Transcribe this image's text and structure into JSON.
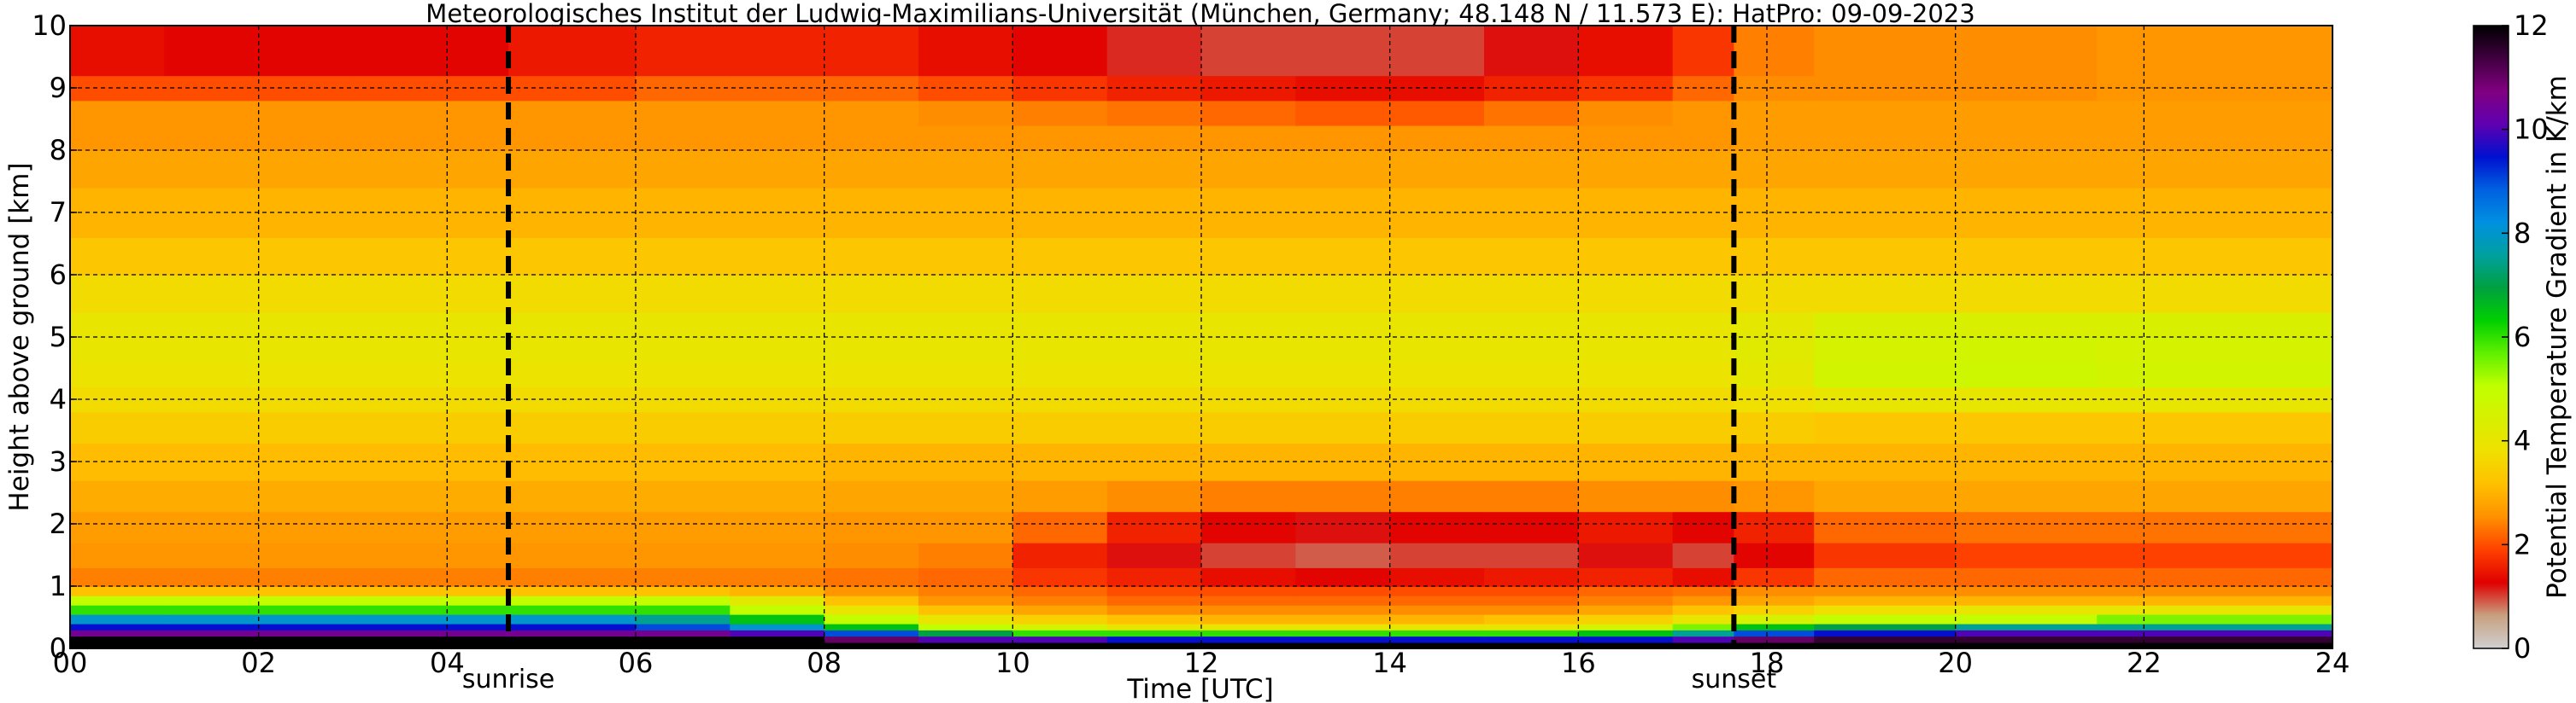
{
  "chart_data": {
    "type": "heatmap",
    "title": "Meteorologisches Institut der Ludwig-Maximilians-Universität (München, Germany; 48.148 N / 11.573 E):    HatPro: 09-09-2023",
    "xlabel": "Time [UTC]",
    "ylabel": "Height above ground [km]",
    "colorbar_label": "Potential Temperature Gradient in K/km",
    "xlim": [
      0,
      24
    ],
    "ylim": [
      0,
      10
    ],
    "clim": [
      0,
      12
    ],
    "x_ticks": [
      0,
      2,
      4,
      6,
      8,
      10,
      12,
      14,
      16,
      18,
      20,
      22,
      24
    ],
    "x_tick_labels": [
      "00",
      "02",
      "04",
      "06",
      "08",
      "10",
      "12",
      "14",
      "16",
      "18",
      "20",
      "22",
      "24"
    ],
    "y_ticks": [
      0,
      1,
      2,
      3,
      4,
      5,
      6,
      7,
      8,
      9,
      10
    ],
    "y_tick_labels": [
      "0",
      "1",
      "2",
      "3",
      "4",
      "5",
      "6",
      "7",
      "8",
      "9",
      "10"
    ],
    "colorbar_ticks": [
      0,
      2,
      4,
      6,
      8,
      10,
      12
    ],
    "colorbar_tick_labels": [
      "0",
      "2",
      "4",
      "6",
      "8",
      "10",
      "12"
    ],
    "grid": true,
    "colormap": [
      "#d0d0d0",
      "#c8a080",
      "#e00000",
      "#ff4000",
      "#ff9000",
      "#ffc000",
      "#f0e000",
      "#d8f000",
      "#c0ff00",
      "#60f000",
      "#00d000",
      "#00a040",
      "#00a0a0",
      "#0090e0",
      "#0060e0",
      "#0010d0",
      "#6000b0",
      "#800080",
      "#400040",
      "#000000"
    ],
    "events": [
      {
        "name": "sunrise",
        "x": 4.65
      },
      {
        "name": "sunset",
        "x": 17.65
      }
    ],
    "time_bins": [
      0,
      1,
      2,
      3,
      4,
      4.65,
      6,
      7,
      8,
      9,
      10,
      11,
      12,
      13,
      14,
      15,
      16,
      17,
      17.65,
      18.5,
      20,
      21.5,
      24
    ],
    "height_bins": [
      0,
      0.1,
      0.2,
      0.3,
      0.4,
      0.55,
      0.7,
      0.85,
      1.0,
      1.3,
      1.7,
      2.2,
      2.7,
      3.3,
      3.8,
      4.2,
      4.6,
      5.0,
      5.4,
      6.0,
      6.6,
      7.4,
      8.0,
      8.4,
      8.8,
      9.2,
      10
    ],
    "values": [
      [
        12.0,
        12.0,
        12.0,
        12.0,
        12.0,
        12.0,
        12.0,
        12.0,
        12.0,
        12.0,
        12.0,
        12.0,
        12.0,
        12.0,
        12.0,
        12.0,
        12.0,
        12.0,
        12.0,
        12.0,
        12.0,
        12.0
      ],
      [
        12.0,
        12.0,
        12.0,
        12.0,
        12.0,
        12.0,
        12.0,
        12.0,
        11.0,
        10.0,
        10.0,
        9.5,
        9.5,
        9.5,
        9.5,
        9.5,
        9.5,
        10.0,
        11.0,
        11.5,
        11.5,
        11.5
      ],
      [
        10.5,
        10.5,
        10.5,
        10.5,
        10.5,
        10.5,
        10.5,
        10.0,
        9.0,
        7.0,
        6.0,
        6.0,
        6.0,
        6.0,
        6.0,
        6.0,
        6.5,
        7.5,
        9.0,
        9.5,
        10.0,
        10.0
      ],
      [
        9.5,
        9.5,
        9.5,
        9.5,
        9.5,
        9.5,
        9.0,
        8.0,
        6.5,
        5.0,
        4.5,
        4.0,
        4.0,
        4.0,
        4.0,
        4.0,
        4.5,
        5.5,
        6.5,
        7.0,
        7.5,
        7.5
      ],
      [
        8.0,
        8.0,
        8.0,
        8.0,
        8.0,
        8.0,
        7.5,
        6.5,
        5.0,
        4.0,
        3.5,
        3.2,
        3.0,
        3.0,
        3.0,
        3.2,
        3.5,
        4.0,
        4.5,
        5.0,
        5.0,
        5.5
      ],
      [
        6.0,
        6.0,
        6.0,
        6.0,
        6.0,
        6.0,
        6.0,
        5.0,
        4.0,
        3.2,
        2.8,
        2.5,
        2.5,
        2.5,
        2.5,
        2.5,
        2.8,
        3.2,
        3.5,
        3.8,
        4.0,
        4.0
      ],
      [
        5.0,
        5.0,
        5.0,
        5.0,
        5.0,
        5.0,
        5.0,
        4.2,
        3.2,
        2.6,
        2.4,
        2.2,
        2.2,
        2.2,
        2.2,
        2.2,
        2.4,
        2.6,
        2.8,
        3.0,
        3.0,
        3.0
      ],
      [
        3.2,
        3.2,
        3.2,
        3.2,
        3.2,
        3.2,
        3.2,
        3.0,
        2.6,
        2.4,
        2.2,
        2.0,
        2.0,
        2.0,
        2.0,
        2.0,
        2.2,
        2.3,
        2.5,
        2.5,
        2.5,
        2.5
      ],
      [
        2.4,
        2.4,
        2.4,
        2.4,
        2.4,
        2.4,
        2.4,
        2.4,
        2.3,
        2.2,
        1.8,
        1.6,
        1.4,
        1.3,
        1.4,
        1.5,
        1.6,
        1.4,
        1.8,
        2.2,
        2.2,
        2.2
      ],
      [
        2.6,
        2.6,
        2.6,
        2.6,
        2.6,
        2.6,
        2.6,
        2.6,
        2.5,
        2.4,
        1.6,
        1.2,
        1.0,
        0.9,
        1.0,
        1.0,
        1.2,
        1.0,
        1.3,
        1.8,
        1.9,
        1.9
      ],
      [
        2.7,
        2.7,
        2.7,
        2.7,
        2.7,
        2.7,
        2.7,
        2.7,
        2.6,
        2.6,
        2.2,
        1.6,
        1.3,
        1.2,
        1.3,
        1.3,
        1.5,
        1.3,
        1.6,
        2.2,
        2.3,
        2.3
      ],
      [
        2.9,
        2.9,
        2.9,
        2.9,
        2.9,
        2.9,
        2.9,
        2.9,
        2.8,
        2.8,
        2.7,
        2.5,
        2.4,
        2.4,
        2.4,
        2.4,
        2.5,
        2.5,
        2.6,
        2.8,
        2.8,
        2.8
      ],
      [
        3.1,
        3.1,
        3.1,
        3.1,
        3.1,
        3.1,
        3.1,
        3.1,
        3.0,
        3.0,
        3.0,
        3.0,
        3.0,
        3.0,
        3.0,
        3.0,
        3.0,
        3.0,
        3.0,
        3.0,
        3.0,
        3.0
      ],
      [
        3.4,
        3.4,
        3.4,
        3.4,
        3.4,
        3.4,
        3.4,
        3.4,
        3.4,
        3.4,
        3.4,
        3.4,
        3.4,
        3.4,
        3.4,
        3.4,
        3.4,
        3.4,
        3.4,
        3.3,
        3.3,
        3.3
      ],
      [
        3.7,
        3.7,
        3.7,
        3.7,
        3.7,
        3.7,
        3.7,
        3.7,
        3.7,
        3.7,
        3.7,
        3.7,
        3.7,
        3.7,
        3.7,
        3.7,
        3.7,
        3.7,
        3.8,
        4.0,
        4.0,
        4.0
      ],
      [
        3.9,
        3.9,
        3.9,
        3.9,
        3.9,
        3.9,
        3.9,
        3.9,
        3.9,
        3.9,
        3.9,
        3.9,
        3.9,
        3.9,
        3.9,
        3.9,
        3.9,
        3.9,
        4.1,
        4.6,
        4.7,
        4.6
      ],
      [
        4.0,
        4.0,
        4.0,
        4.0,
        4.0,
        4.0,
        4.0,
        4.0,
        4.0,
        4.0,
        4.0,
        4.0,
        4.0,
        4.0,
        4.0,
        4.0,
        4.0,
        4.0,
        4.2,
        4.5,
        4.6,
        4.5
      ],
      [
        4.0,
        4.0,
        4.0,
        4.0,
        4.0,
        4.0,
        4.0,
        4.0,
        4.0,
        4.0,
        4.0,
        4.0,
        4.0,
        4.0,
        4.0,
        4.0,
        4.0,
        4.0,
        4.1,
        4.4,
        4.4,
        4.4
      ],
      [
        3.7,
        3.7,
        3.7,
        3.7,
        3.7,
        3.7,
        3.7,
        3.7,
        3.7,
        3.7,
        3.7,
        3.7,
        3.7,
        3.7,
        3.7,
        3.7,
        3.7,
        3.7,
        3.7,
        3.7,
        3.7,
        3.7
      ],
      [
        3.3,
        3.3,
        3.3,
        3.3,
        3.3,
        3.3,
        3.3,
        3.3,
        3.3,
        3.3,
        3.3,
        3.3,
        3.3,
        3.3,
        3.3,
        3.3,
        3.3,
        3.3,
        3.3,
        3.3,
        3.3,
        3.3
      ],
      [
        3.0,
        3.0,
        3.0,
        3.0,
        3.0,
        3.0,
        3.0,
        3.0,
        3.0,
        3.0,
        3.0,
        3.0,
        3.0,
        3.0,
        3.0,
        3.0,
        3.0,
        3.0,
        3.0,
        3.0,
        3.0,
        3.0
      ],
      [
        2.8,
        2.8,
        2.8,
        2.8,
        2.8,
        2.8,
        2.8,
        2.8,
        2.8,
        2.8,
        2.8,
        2.8,
        2.8,
        2.8,
        2.8,
        2.8,
        2.8,
        2.8,
        2.8,
        2.8,
        2.8,
        2.8
      ],
      [
        2.6,
        2.6,
        2.6,
        2.6,
        2.6,
        2.6,
        2.6,
        2.6,
        2.6,
        2.6,
        2.6,
        2.6,
        2.6,
        2.6,
        2.6,
        2.6,
        2.6,
        2.6,
        2.7,
        2.7,
        2.7,
        2.7
      ],
      [
        2.6,
        2.6,
        2.6,
        2.6,
        2.6,
        2.6,
        2.6,
        2.6,
        2.6,
        2.5,
        2.4,
        2.3,
        2.2,
        2.1,
        2.1,
        2.3,
        2.5,
        2.6,
        2.7,
        2.7,
        2.7,
        2.7
      ],
      [
        2.0,
        2.0,
        2.0,
        2.0,
        2.0,
        2.0,
        2.2,
        2.2,
        2.2,
        2.0,
        1.8,
        1.6,
        1.5,
        1.4,
        1.4,
        1.6,
        1.8,
        2.2,
        2.5,
        2.5,
        2.5,
        2.6
      ],
      [
        1.4,
        1.3,
        1.3,
        1.3,
        1.3,
        1.5,
        1.6,
        1.6,
        1.6,
        1.4,
        1.3,
        1.1,
        1.0,
        1.0,
        1.0,
        1.2,
        1.4,
        1.8,
        2.4,
        2.5,
        2.5,
        2.6
      ]
    ]
  }
}
